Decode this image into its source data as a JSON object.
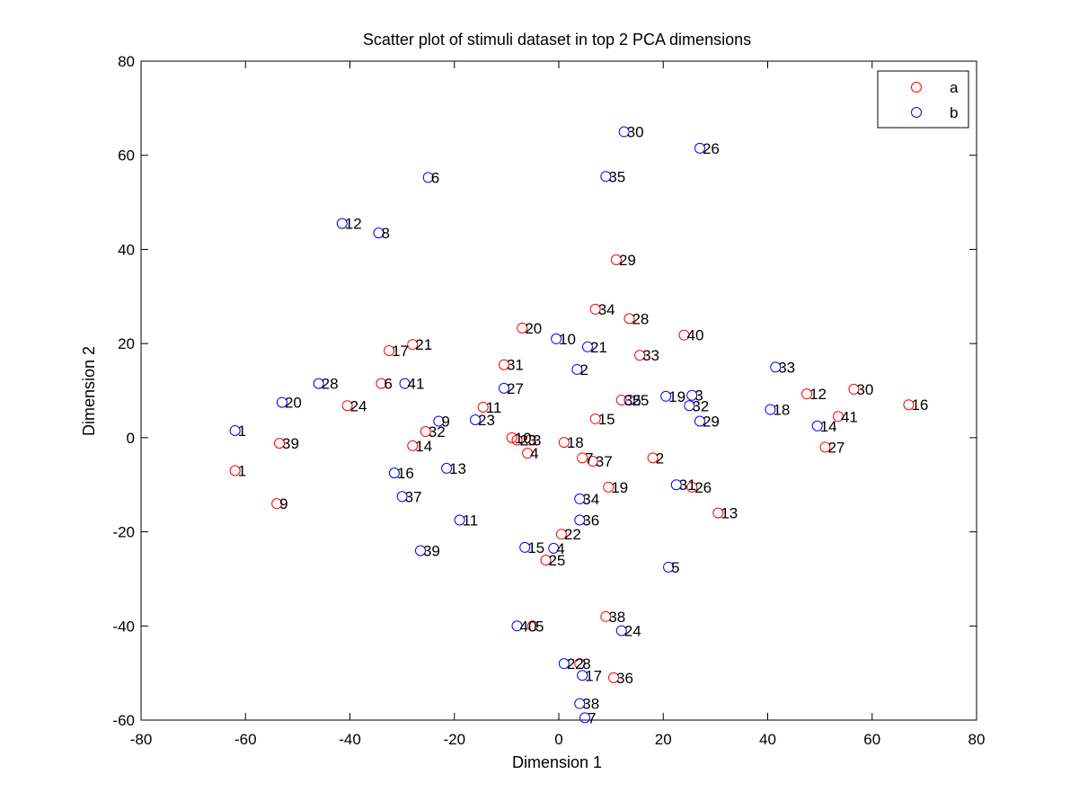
{
  "chart_data": {
    "type": "scatter",
    "title": "Scatter plot of stimuli dataset in top 2 PCA dimensions",
    "xlabel": "Dimension 1",
    "ylabel": "Dimension 2",
    "xlim": [
      -80,
      80
    ],
    "ylim": [
      -60,
      80
    ],
    "xticks": [
      -80,
      -60,
      -40,
      -20,
      0,
      20,
      40,
      60,
      80
    ],
    "yticks": [
      -60,
      -40,
      -20,
      0,
      20,
      40,
      60,
      80
    ],
    "xtick_labels": [
      "-80",
      "-60",
      "-40",
      "-20",
      "0",
      "20",
      "40",
      "60",
      "80"
    ],
    "ytick_labels": [
      "-60",
      "-40",
      "-20",
      "0",
      "20",
      "40",
      "60",
      "80"
    ],
    "grid": false,
    "marker": "open-circle",
    "legend": {
      "position": "top-right",
      "entries": [
        "a",
        "b"
      ]
    },
    "series": [
      {
        "name": "a",
        "color": "#ff0000",
        "points": [
          {
            "label": "1",
            "x": -62,
            "y": -7
          },
          {
            "label": "2",
            "x": 18,
            "y": -4.3
          },
          {
            "label": "3",
            "x": -5.5,
            "y": -0.5
          },
          {
            "label": "4",
            "x": -6,
            "y": -3.3
          },
          {
            "label": "5",
            "x": -5,
            "y": -40
          },
          {
            "label": "6",
            "x": -34,
            "y": 11.5
          },
          {
            "label": "7",
            "x": 4.5,
            "y": -4.3
          },
          {
            "label": "8",
            "x": 4,
            "y": -48
          },
          {
            "label": "9",
            "x": -54,
            "y": -14
          },
          {
            "label": "10",
            "x": -9,
            "y": 0
          },
          {
            "label": "11",
            "x": -14.5,
            "y": 6.5
          },
          {
            "label": "12",
            "x": 47.5,
            "y": 9.3
          },
          {
            "label": "13",
            "x": 30.5,
            "y": -16
          },
          {
            "label": "14",
            "x": -28,
            "y": -1.7
          },
          {
            "label": "15",
            "x": 7,
            "y": 4
          },
          {
            "label": "16",
            "x": 67,
            "y": 7
          },
          {
            "label": "17",
            "x": -32.5,
            "y": 18.5
          },
          {
            "label": "18",
            "x": 1,
            "y": -1
          },
          {
            "label": "19",
            "x": 9.5,
            "y": -10.5
          },
          {
            "label": "20",
            "x": -7,
            "y": 23.3
          },
          {
            "label": "21",
            "x": -28,
            "y": 19.8
          },
          {
            "label": "22",
            "x": 0.5,
            "y": -20.5
          },
          {
            "label": "23",
            "x": -8,
            "y": -0.5
          },
          {
            "label": "24",
            "x": -40.5,
            "y": 6.8
          },
          {
            "label": "25",
            "x": -2.5,
            "y": -26
          },
          {
            "label": "26",
            "x": 25.5,
            "y": -10.5
          },
          {
            "label": "27",
            "x": 51,
            "y": -2
          },
          {
            "label": "28",
            "x": 13.5,
            "y": 25.3
          },
          {
            "label": "29",
            "x": 11,
            "y": 37.8
          },
          {
            "label": "30",
            "x": 56.5,
            "y": 10.3
          },
          {
            "label": "31",
            "x": -10.5,
            "y": 15.5
          },
          {
            "label": "32",
            "x": -25.5,
            "y": 1.3
          },
          {
            "label": "33",
            "x": 15.5,
            "y": 17.5
          },
          {
            "label": "34",
            "x": 7,
            "y": 27.3
          },
          {
            "label": "35",
            "x": 12,
            "y": 8
          },
          {
            "label": "36",
            "x": 10.5,
            "y": -51
          },
          {
            "label": "37",
            "x": 6.5,
            "y": -5
          },
          {
            "label": "38",
            "x": 9,
            "y": -38
          },
          {
            "label": "39",
            "x": -53.5,
            "y": -1.2
          },
          {
            "label": "40",
            "x": 24,
            "y": 21.8
          },
          {
            "label": "41",
            "x": 53.5,
            "y": 4.5
          }
        ]
      },
      {
        "name": "b",
        "color": "#0000ff",
        "points": [
          {
            "label": "1",
            "x": -62,
            "y": 1.5
          },
          {
            "label": "2",
            "x": 3.5,
            "y": 14.5
          },
          {
            "label": "3",
            "x": 25.5,
            "y": 9
          },
          {
            "label": "4",
            "x": -1,
            "y": -23.5
          },
          {
            "label": "5",
            "x": 21,
            "y": -27.5
          },
          {
            "label": "6",
            "x": -25,
            "y": 55.3
          },
          {
            "label": "7",
            "x": 5,
            "y": -59.5
          },
          {
            "label": "8",
            "x": -34.5,
            "y": 43.5
          },
          {
            "label": "9",
            "x": -23,
            "y": 3.5
          },
          {
            "label": "10",
            "x": -0.5,
            "y": 21
          },
          {
            "label": "11",
            "x": -19,
            "y": -17.5
          },
          {
            "label": "12",
            "x": -41.5,
            "y": 45.5
          },
          {
            "label": "13",
            "x": -21.5,
            "y": -6.5
          },
          {
            "label": "14",
            "x": 49.5,
            "y": 2.5
          },
          {
            "label": "15",
            "x": -6.5,
            "y": -23.3
          },
          {
            "label": "16",
            "x": -31.5,
            "y": -7.5
          },
          {
            "label": "17",
            "x": 4.5,
            "y": -50.5
          },
          {
            "label": "18",
            "x": 40.5,
            "y": 6
          },
          {
            "label": "19",
            "x": 20.5,
            "y": 8.8
          },
          {
            "label": "20",
            "x": -53,
            "y": 7.5
          },
          {
            "label": "21",
            "x": 5.5,
            "y": 19.3
          },
          {
            "label": "22",
            "x": 1,
            "y": -48
          },
          {
            "label": "23",
            "x": -16,
            "y": 3.8
          },
          {
            "label": "24",
            "x": 12,
            "y": -41
          },
          {
            "label": "25",
            "x": 13.5,
            "y": 8
          },
          {
            "label": "26",
            "x": 27,
            "y": 61.5
          },
          {
            "label": "27",
            "x": -10.5,
            "y": 10.5
          },
          {
            "label": "28",
            "x": -46,
            "y": 11.5
          },
          {
            "label": "29",
            "x": 27,
            "y": 3.5
          },
          {
            "label": "30",
            "x": 12.5,
            "y": 65
          },
          {
            "label": "31",
            "x": 22.5,
            "y": -10
          },
          {
            "label": "32",
            "x": 25,
            "y": 6.8
          },
          {
            "label": "33",
            "x": 41.5,
            "y": 15
          },
          {
            "label": "34",
            "x": 4,
            "y": -13
          },
          {
            "label": "35",
            "x": 9,
            "y": 55.5
          },
          {
            "label": "36",
            "x": 4,
            "y": -17.5
          },
          {
            "label": "37",
            "x": -30,
            "y": -12.5
          },
          {
            "label": "38",
            "x": 4,
            "y": -56.5
          },
          {
            "label": "39",
            "x": -26.5,
            "y": -24
          },
          {
            "label": "40",
            "x": -8,
            "y": -40
          },
          {
            "label": "41",
            "x": -29.5,
            "y": 11.5
          }
        ]
      }
    ]
  }
}
